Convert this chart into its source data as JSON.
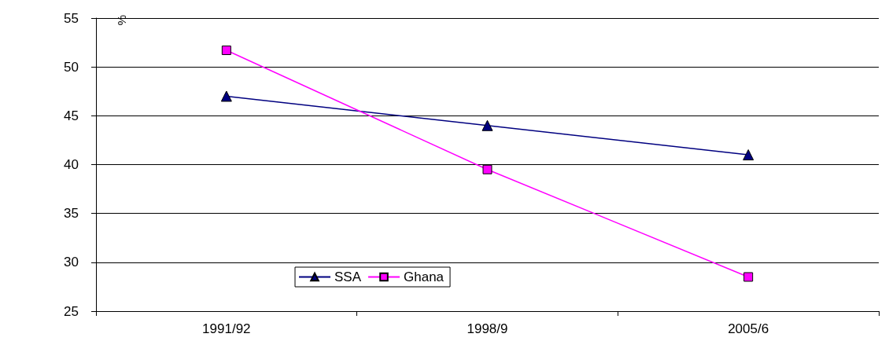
{
  "chart_data": {
    "type": "line",
    "ylabel": "%",
    "categories": [
      "1991/92",
      "1998/9",
      "2005/6"
    ],
    "series": [
      {
        "name": "SSA",
        "color": "#000080",
        "marker": "triangle",
        "values": [
          47,
          44,
          41
        ]
      },
      {
        "name": "Ghana",
        "color": "#ff00ff",
        "marker": "square",
        "values": [
          51.7,
          39.5,
          28.5
        ]
      }
    ],
    "ylim": [
      25,
      55
    ],
    "yticks": [
      25,
      30,
      35,
      40,
      45,
      50,
      55
    ],
    "grid": "y",
    "legend": "bottom left"
  }
}
